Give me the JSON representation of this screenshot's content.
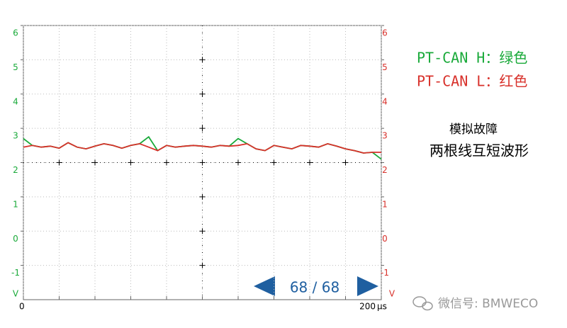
{
  "chart_data": {
    "type": "line",
    "x": [
      0,
      5,
      10,
      15,
      20,
      25,
      30,
      35,
      40,
      45,
      50,
      55,
      60,
      65,
      70,
      75,
      80,
      85,
      90,
      95,
      100,
      105,
      110,
      115,
      120,
      125,
      130,
      135,
      140,
      145,
      150,
      155,
      160,
      165,
      170,
      175,
      180,
      185,
      190,
      195,
      200
    ],
    "xlim": [
      0,
      200
    ],
    "xticks": [
      {
        "value": 0,
        "label": "0"
      },
      {
        "value": 20,
        "label": null
      },
      {
        "value": 40,
        "label": null
      },
      {
        "value": 60,
        "label": null
      },
      {
        "value": 80,
        "label": null
      },
      {
        "value": 100,
        "label": null
      },
      {
        "value": 120,
        "label": null
      },
      {
        "value": 140,
        "label": null
      },
      {
        "value": 160,
        "label": null
      },
      {
        "value": 180,
        "label": null
      },
      {
        "value": 200,
        "label": "200"
      }
    ],
    "x_unit": "μs",
    "ylim": [
      -2,
      6
    ],
    "yticks": [
      6,
      5,
      4,
      3,
      2,
      1,
      0,
      -1
    ],
    "y_unit": "V",
    "y2lim": [
      -2,
      6
    ],
    "y2ticks": [
      6,
      5,
      4,
      3,
      2,
      1,
      0,
      -1
    ],
    "y2_unit": "V",
    "grid": true,
    "series": [
      {
        "name": "PT-CAN H：绿色",
        "color": "#1aaa3a",
        "values": [
          2.7,
          2.5,
          2.45,
          2.48,
          2.42,
          2.58,
          2.45,
          2.4,
          2.48,
          2.55,
          2.5,
          2.42,
          2.5,
          2.55,
          2.75,
          2.35,
          2.5,
          2.45,
          2.48,
          2.5,
          2.48,
          2.45,
          2.5,
          2.48,
          2.7,
          2.55,
          2.4,
          2.35,
          2.5,
          2.45,
          2.4,
          2.5,
          2.48,
          2.45,
          2.55,
          2.48,
          2.4,
          2.35,
          2.28,
          2.3,
          2.1
        ]
      },
      {
        "name": "PT-CAN L：红色",
        "color": "#d8312b",
        "values": [
          2.45,
          2.5,
          2.45,
          2.48,
          2.42,
          2.58,
          2.45,
          2.4,
          2.48,
          2.55,
          2.5,
          2.42,
          2.5,
          2.55,
          2.45,
          2.35,
          2.5,
          2.45,
          2.48,
          2.5,
          2.48,
          2.45,
          2.5,
          2.48,
          2.5,
          2.55,
          2.4,
          2.35,
          2.5,
          2.45,
          2.4,
          2.5,
          2.48,
          2.45,
          2.55,
          2.48,
          2.4,
          2.35,
          2.28,
          2.3,
          2.3
        ]
      }
    ],
    "annotations": [
      "模拟故障",
      "两根线互短波形"
    ],
    "page_indicator": "68 / 68",
    "watermark": "微信号: BMWECO"
  }
}
